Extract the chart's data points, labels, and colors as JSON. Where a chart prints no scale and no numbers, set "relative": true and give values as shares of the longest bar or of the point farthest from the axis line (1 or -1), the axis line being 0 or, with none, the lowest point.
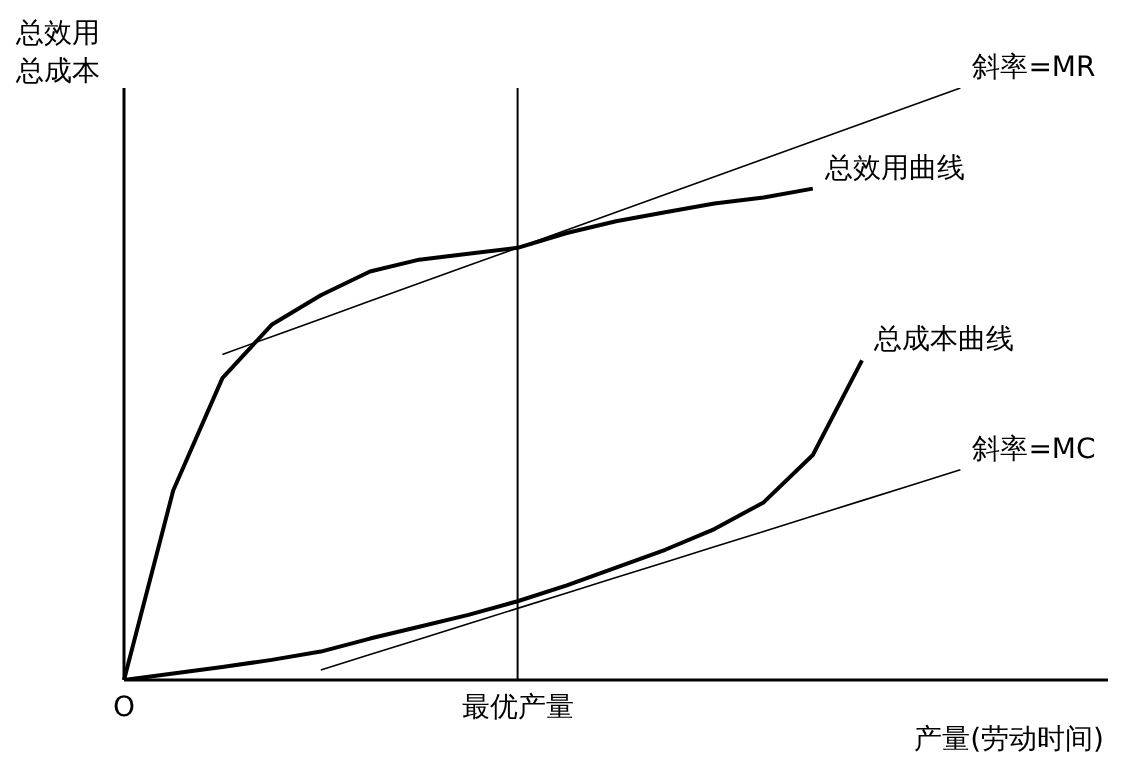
{
  "chart_data": {
    "type": "line",
    "relative": true,
    "ylabel": "总效用总成本",
    "xlabel": "产量(劳动时间)",
    "grid": false,
    "legend": false,
    "marker": "none",
    "categories": [
      "O",
      null,
      null,
      null,
      null,
      null,
      null,
      null,
      "最优产量",
      null,
      null,
      null,
      null,
      null,
      null,
      null,
      null,
      null,
      null,
      null,
      null
    ],
    "ref_lines": [
      {
        "axis": "x",
        "value": "最优产量",
        "color": "#000000"
      }
    ],
    "series": [
      {
        "name": "总效用曲线",
        "color": "#000000",
        "values": [
          0,
          0.32,
          0.51,
          0.6,
          0.65,
          0.69,
          0.71,
          0.72,
          0.73,
          0.755,
          0.775,
          0.79,
          0.805,
          0.815,
          0.83,
          null,
          null,
          null,
          null,
          null,
          null
        ]
      },
      {
        "name": "总成本曲线",
        "color": "#000000",
        "values": [
          0,
          0.011,
          0.022,
          0.034,
          0.048,
          0.07,
          0.09,
          0.11,
          0.133,
          0.16,
          0.19,
          0.22,
          0.255,
          0.3,
          0.38,
          0.54,
          null,
          null,
          null,
          null,
          null
        ]
      },
      {
        "name": "斜率=MR",
        "color": "#000000",
        "values": [
          null,
          null,
          0.55,
          0.58,
          0.61,
          0.64,
          0.67,
          0.7,
          0.73,
          0.76,
          0.79,
          0.82,
          0.85,
          0.88,
          0.91,
          0.94,
          0.97,
          1.0,
          null,
          null,
          null
        ]
      },
      {
        "name": "斜率=MC",
        "color": "#000000",
        "values": [
          null,
          null,
          null,
          null,
          0.017,
          0.043,
          0.069,
          0.095,
          0.121,
          0.147,
          0.173,
          0.199,
          0.225,
          0.251,
          0.277,
          0.303,
          0.329,
          0.355,
          null,
          null,
          null
        ]
      }
    ]
  }
}
